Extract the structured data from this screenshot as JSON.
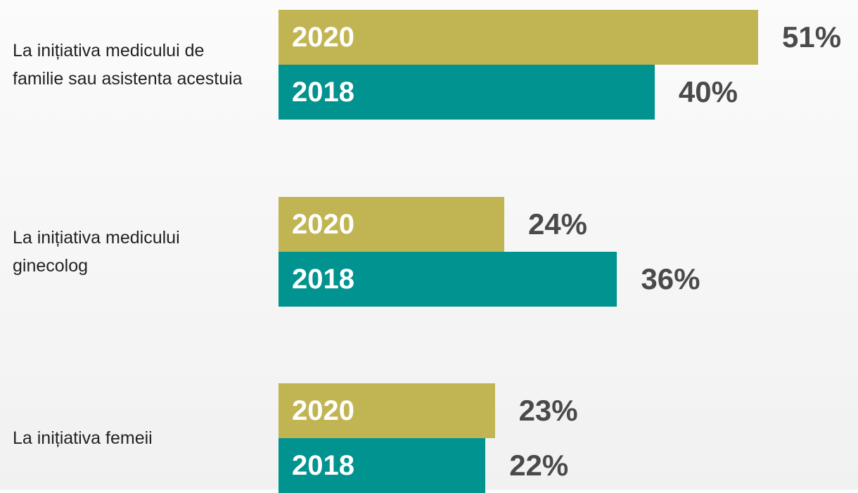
{
  "chart_data": {
    "type": "bar",
    "orientation": "horizontal",
    "categories": [
      "La inițiativa medicului de familie sau asistenta acestuia",
      "La inițiativa medicului ginecolog",
      "La inițiativa femeii"
    ],
    "series": [
      {
        "name": "2020",
        "color": "#c1b553",
        "values": [
          51,
          24,
          23
        ],
        "value_labels": [
          "51%",
          "24%",
          "23%"
        ]
      },
      {
        "name": "2018",
        "color": "#00938f",
        "values": [
          40,
          36,
          22
        ],
        "value_labels": [
          "40%",
          "36%",
          "22%"
        ]
      }
    ]
  }
}
